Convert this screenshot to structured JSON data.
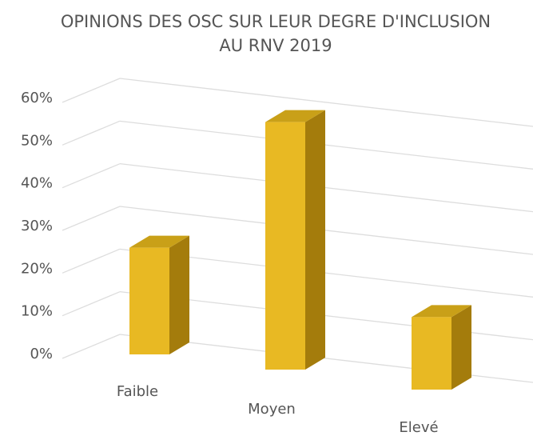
{
  "chart_data": {
    "type": "bar3d",
    "title": [
      "OPINIONS DES OSC SUR LEUR DEGRE D'INCLUSION",
      "AU RNV 2019"
    ],
    "categories": [
      "Faible",
      "Moyen",
      "Elevé"
    ],
    "values": [
      25,
      58,
      17
    ],
    "color": "#e8b923",
    "ylim": [
      0,
      60
    ],
    "yticks": [
      {
        "value": 0,
        "label": "0%"
      },
      {
        "value": 10,
        "label": "10%"
      },
      {
        "value": 20,
        "label": "20%"
      },
      {
        "value": 30,
        "label": "30%"
      },
      {
        "value": 40,
        "label": "40%"
      },
      {
        "value": 50,
        "label": "50%"
      },
      {
        "value": 60,
        "label": "60%"
      }
    ],
    "grid": true
  }
}
